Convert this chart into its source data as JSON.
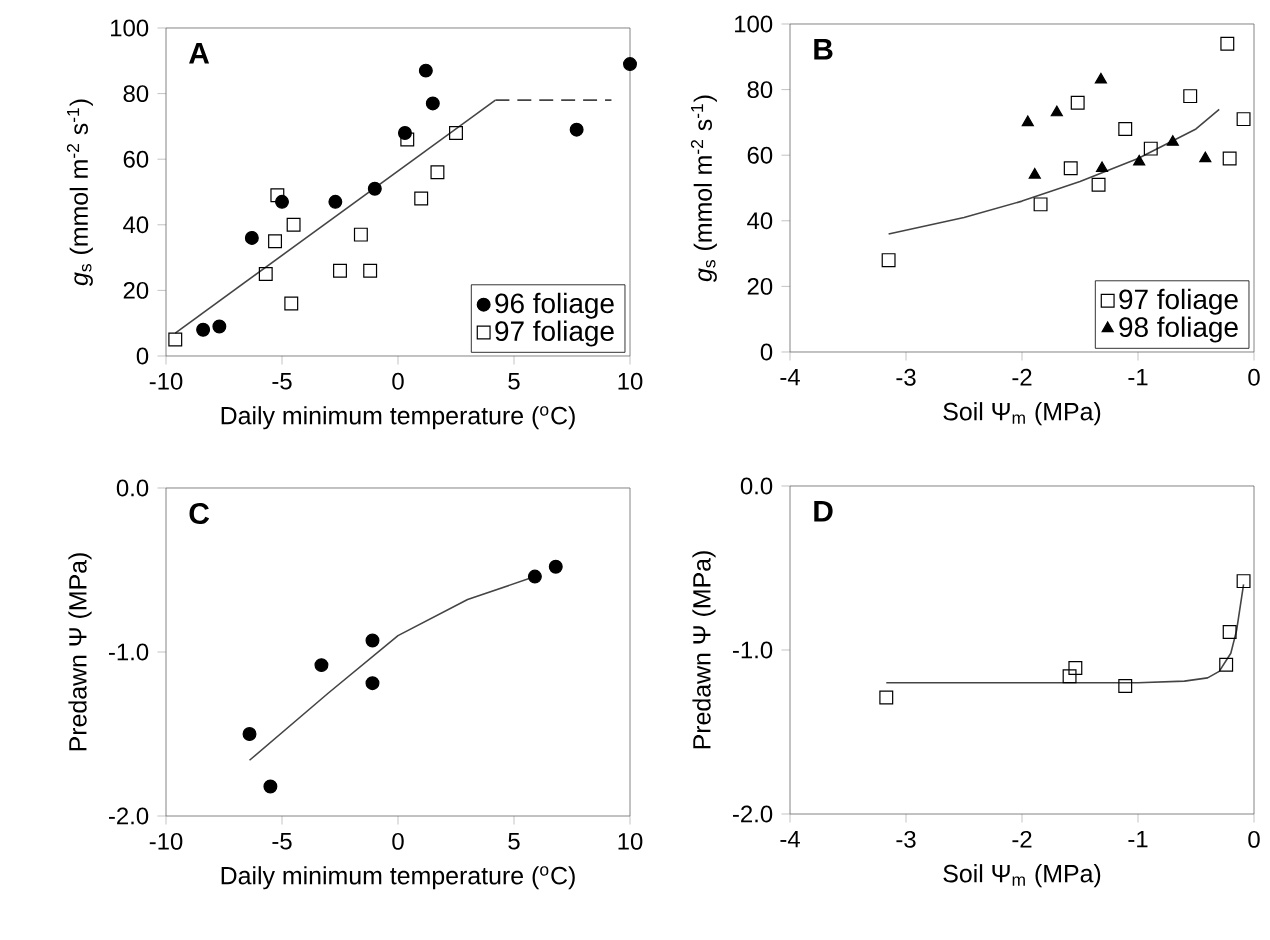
{
  "chart_data": [
    {
      "type": "scatter",
      "title": "A",
      "xlabel": "Daily minimum temperature ($^{o}$C)",
      "ylabel": "*g*$_{s}$ (mmol m$^{-2}$ s$^{-1}$)",
      "xlim": [
        -10,
        10
      ],
      "ylim": [
        0,
        100
      ],
      "xticks": [
        -10,
        -5,
        0,
        5,
        10
      ],
      "yticks": [
        0,
        20,
        40,
        60,
        80,
        100
      ],
      "legend": "bottom right",
      "series": [
        {
          "name": "96 foliage",
          "color": "#000000",
          "marker": "circle",
          "x": [
            -8.4,
            -7.7,
            -6.3,
            -5.0,
            -2.7,
            -1.0,
            0.3,
            1.2,
            1.5,
            7.7,
            10
          ],
          "values": [
            8,
            9,
            36,
            47,
            47,
            51,
            68,
            87,
            77,
            69,
            89
          ]
        },
        {
          "name": "97 foliage",
          "color": "#000000",
          "marker": "square",
          "x": [
            -9.6,
            -5.7,
            -5.2,
            -5.3,
            -4.5,
            -4.6,
            -2.5,
            -1.6,
            -1.2,
            0.4,
            1.0,
            1.7,
            2.5
          ],
          "values": [
            5,
            25,
            49,
            35,
            40,
            16,
            26,
            37,
            26,
            66,
            48,
            56,
            68
          ]
        },
        {
          "type": "line",
          "color": "#444444",
          "line_style": "solid",
          "x": [
            -9.6,
            4.2
          ],
          "values": [
            7,
            78
          ]
        },
        {
          "type": "line",
          "color": "#444444",
          "line_style": "dashed",
          "x": [
            4.2,
            9.2
          ],
          "values": [
            78,
            78
          ]
        }
      ]
    },
    {
      "type": "scatter",
      "title": "B",
      "xlabel": "Soil Ψ$_{m}$ (MPa)",
      "ylabel": "*g*$_{s}$ (mmol m$^{-2}$ s$^{-1}$)",
      "xlim": [
        -4,
        0
      ],
      "ylim": [
        0,
        100
      ],
      "xticks": [
        -4,
        -3,
        -2,
        -1,
        0
      ],
      "yticks": [
        0,
        20,
        40,
        60,
        80,
        100
      ],
      "legend": "bottom right",
      "series": [
        {
          "name": "97 foliage",
          "color": "#000000",
          "marker": "square",
          "x": [
            -3.15,
            -1.84,
            -1.58,
            -1.52,
            -1.34,
            -1.11,
            -0.89,
            -0.55,
            -0.23,
            -0.21,
            -0.09
          ],
          "values": [
            28,
            45,
            56,
            76,
            51,
            68,
            62,
            78,
            94,
            59,
            71
          ]
        },
        {
          "name": "98 foliage",
          "color": "#000000",
          "marker": "triangle",
          "x": [
            -1.95,
            -1.7,
            -1.32,
            -1.89,
            -1.31,
            -0.99,
            -0.7,
            -0.42
          ],
          "values": [
            70,
            73,
            83,
            54,
            56,
            58,
            64,
            59
          ]
        },
        {
          "type": "line",
          "color": "#444444",
          "line_style": "solid",
          "x": [
            -3.15,
            -2.5,
            -2,
            -1.5,
            -1,
            -0.5,
            -0.3
          ],
          "values": [
            36,
            41,
            46,
            52,
            59,
            68,
            74
          ]
        }
      ]
    },
    {
      "type": "scatter",
      "title": "C",
      "xlabel": "Daily minimum temperature ($^{o}$C)",
      "ylabel": "Predawn Ψ (MPa)",
      "xlim": [
        -10,
        10
      ],
      "ylim": [
        -2,
        0
      ],
      "xticks": [
        -10,
        -5,
        0,
        5,
        10
      ],
      "yticks": [
        {
          "value": -2,
          "label": "-2.0"
        },
        {
          "value": -1,
          "label": "-1.0"
        },
        {
          "value": 0,
          "label": "0.0"
        }
      ],
      "series": [
        {
          "color": "#000000",
          "marker": "circle",
          "x": [
            -6.4,
            -5.5,
            -3.3,
            -1.1,
            -1.1,
            5.9,
            6.8
          ],
          "values": [
            -1.5,
            -1.82,
            -1.08,
            -0.93,
            -1.19,
            -0.54,
            -0.48
          ]
        },
        {
          "type": "line",
          "color": "#444444",
          "line_style": "solid",
          "x": [
            -6.4,
            -3,
            0,
            3,
            5.9
          ],
          "values": [
            -1.66,
            -1.25,
            -0.9,
            -0.68,
            -0.54
          ]
        }
      ]
    },
    {
      "type": "scatter",
      "title": "D",
      "xlabel": "Soil Ψ$_{m}$ (MPa)",
      "ylabel": "Predawn Ψ (MPa)",
      "xlim": [
        -4,
        0
      ],
      "ylim": [
        -2,
        0
      ],
      "xticks": [
        -4,
        -3,
        -2,
        -1,
        0
      ],
      "yticks": [
        {
          "value": -2,
          "label": "-2.0"
        },
        {
          "value": -1,
          "label": "-1.0"
        },
        {
          "value": 0,
          "label": "0.0"
        }
      ],
      "series": [
        {
          "color": "#000000",
          "marker": "square",
          "x": [
            -3.17,
            -1.59,
            -1.54,
            -1.11,
            -0.24,
            -0.21,
            -0.09
          ],
          "values": [
            -1.29,
            -1.16,
            -1.11,
            -1.22,
            -1.09,
            -0.89,
            -0.58
          ]
        },
        {
          "type": "line",
          "color": "#444444",
          "line_style": "solid",
          "x": [
            -3.17,
            -1,
            -0.6,
            -0.4,
            -0.3,
            -0.2,
            -0.15,
            -0.09
          ],
          "values": [
            -1.2,
            -1.2,
            -1.19,
            -1.17,
            -1.13,
            -1.02,
            -0.88,
            -0.6
          ]
        }
      ]
    }
  ]
}
